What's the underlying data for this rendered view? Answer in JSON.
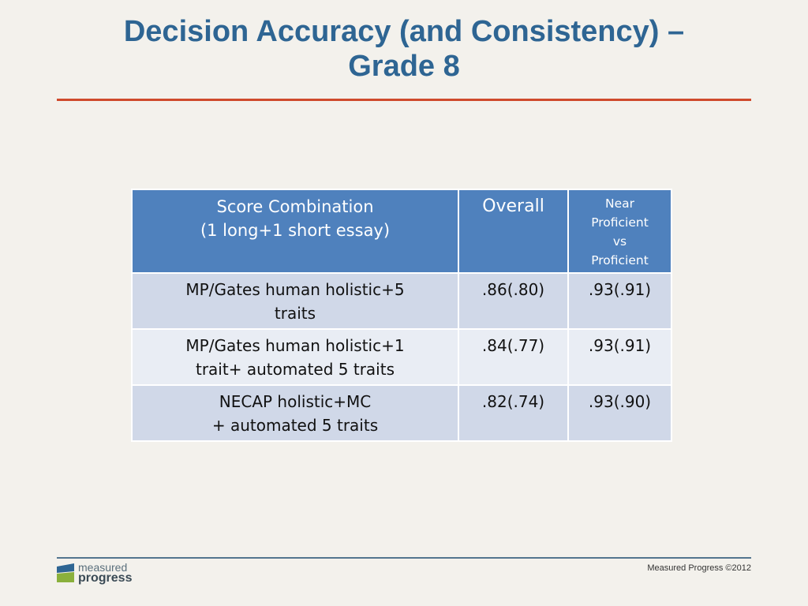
{
  "slide": {
    "title_line1": "Decision Accuracy (and Consistency) –",
    "title_line2": "Grade 8"
  },
  "table": {
    "headers": [
      {
        "line1": "Score Combination",
        "line2": "(1 long+1 short essay)"
      },
      {
        "line1": "Overall"
      },
      {
        "line1": "Near",
        "line2": "Proficient",
        "line3": "vs",
        "line4": "Proficient"
      }
    ],
    "rows": [
      {
        "combo_line1": "MP/Gates human holistic+5",
        "combo_line2": "traits",
        "overall": ".86(.80)",
        "near": ".93(.91)"
      },
      {
        "combo_line1": "MP/Gates human holistic+1",
        "combo_line2": "trait+ automated 5 traits",
        "overall": ".84(.77)",
        "near": ".93(.91)"
      },
      {
        "combo_line1": "NECAP holistic+MC",
        "combo_line2": "+ automated 5 traits",
        "overall": ".82(.74)",
        "near": ".93(.90)"
      }
    ]
  },
  "footer": {
    "logo_word1": "measured",
    "logo_word2": "progress",
    "copyright": "Measured Progress ©2012"
  },
  "colors": {
    "title": "#2e6593",
    "title_rule": "#cf4a2c",
    "header_bg": "#4f81bd",
    "row_odd": "#d0d8e8",
    "row_even": "#e9edf4",
    "background": "#f3f1ec"
  }
}
